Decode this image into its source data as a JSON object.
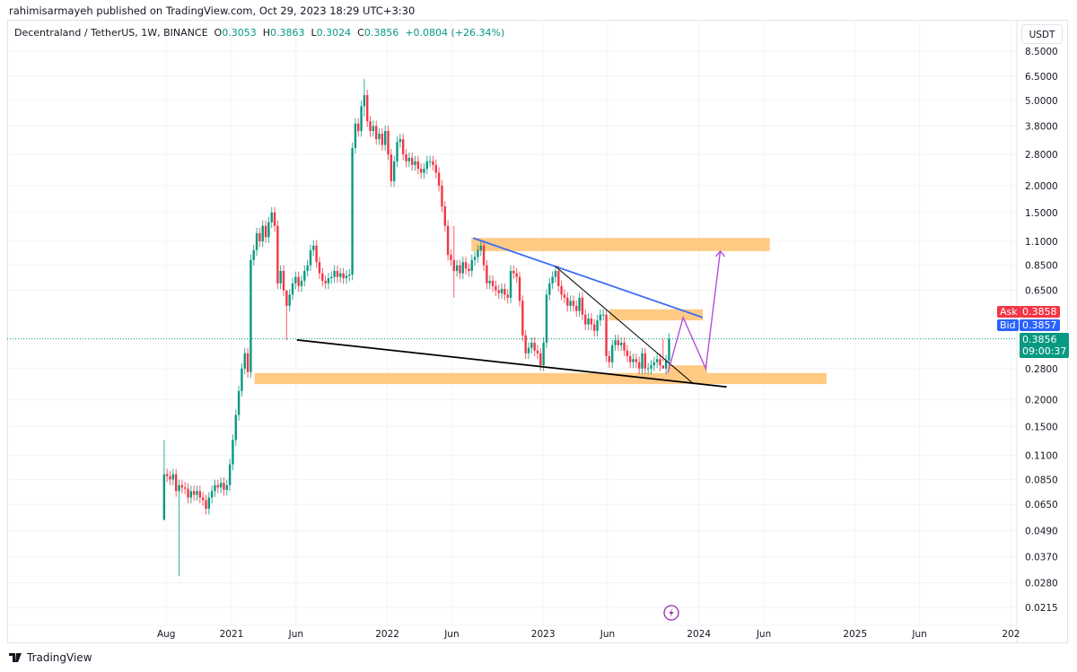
{
  "publisher_line": "rahimisarmayeh published on TradingView.com, Oct 29, 2023 18:29 UTC+3:30",
  "legend": {
    "symbol": "Decentraland / TetherUS, 1W, BINANCE",
    "open_label": "O",
    "open": "0.3053",
    "high_label": "H",
    "high": "0.3863",
    "low_label": "L",
    "low": "0.3024",
    "close_label": "C",
    "close": "0.3856",
    "change": "+0.0804 (+26.34%)"
  },
  "currency_button": "USDT",
  "ask": {
    "label": "Ask",
    "value": "0.3858"
  },
  "bid": {
    "label": "Bid",
    "value": "0.3857"
  },
  "last_price": {
    "value": "0.3856",
    "countdown": "09:00:37"
  },
  "logo_text": "TradingView",
  "colors": {
    "up": "#089981",
    "down": "#f23645",
    "zone": "#ffc16e",
    "support": "#000000",
    "resistance": "#3d6cf5",
    "projection": "#b54ddc",
    "ask": "#f23645",
    "bid": "#2962ff",
    "grid": "#f0f3fa"
  },
  "icons": {
    "event": "lightning-icon",
    "logo": "tradingview-logo-icon"
  },
  "chart_data": {
    "type": "candlestick",
    "title": "Decentraland / TetherUS, 1W, BINANCE",
    "scale": "log",
    "ylim": [
      0.0195,
      9.5
    ],
    "y_ticks": [
      8.5,
      6.5,
      5.0,
      3.8,
      2.8,
      2.0,
      1.5,
      1.1,
      0.85,
      0.65,
      0.28,
      0.2,
      0.15,
      0.11,
      0.085,
      0.065,
      0.049,
      0.037,
      0.028,
      0.0215
    ],
    "y_tick_labels": [
      "8.5000",
      "6.5000",
      "5.0000",
      "3.8000",
      "2.8000",
      "2.0000",
      "1.5000",
      "1.1000",
      "0.8500",
      "0.6500",
      "0.2800",
      "0.2000",
      "0.1500",
      "0.1100",
      "0.0850",
      "0.0650",
      "0.0490",
      "0.0370",
      "0.0280",
      "0.0215"
    ],
    "x_ticks": [
      {
        "label": "Aug",
        "date": "2020-08-01"
      },
      {
        "label": "2021",
        "date": "2021-01-01"
      },
      {
        "label": "Jun",
        "date": "2021-06-01"
      },
      {
        "label": "2022",
        "date": "2022-01-01"
      },
      {
        "label": "Jun",
        "date": "2022-06-01"
      },
      {
        "label": "2023",
        "date": "2023-01-01"
      },
      {
        "label": "Jun",
        "date": "2023-06-01"
      },
      {
        "label": "2024",
        "date": "2024-01-01"
      },
      {
        "label": "Jun",
        "date": "2024-06-01"
      },
      {
        "label": "2025",
        "date": "2025-01-01"
      },
      {
        "label": "Jun",
        "date": "2025-06-01"
      },
      {
        "label": "202",
        "date": "2026-01-01"
      }
    ],
    "interval": "1W",
    "last_candle_date": "2023-10-23",
    "first_open": 0.055,
    "closes": [
      0.09,
      0.088,
      0.085,
      0.09,
      0.075,
      0.08,
      0.078,
      0.077,
      0.07,
      0.075,
      0.072,
      0.075,
      0.07,
      0.068,
      0.062,
      0.07,
      0.075,
      0.08,
      0.078,
      0.082,
      0.076,
      0.08,
      0.1,
      0.13,
      0.17,
      0.22,
      0.28,
      0.33,
      0.27,
      0.9,
      1.0,
      1.2,
      1.1,
      1.3,
      1.15,
      1.35,
      1.5,
      1.3,
      0.7,
      0.8,
      0.65,
      0.55,
      0.62,
      0.7,
      0.75,
      0.68,
      0.72,
      0.8,
      0.85,
      1.0,
      1.05,
      0.88,
      0.78,
      0.72,
      0.7,
      0.74,
      0.75,
      0.8,
      0.75,
      0.78,
      0.74,
      0.76,
      0.77,
      3.0,
      3.9,
      3.6,
      4.7,
      5.3,
      4.0,
      3.6,
      3.8,
      3.3,
      3.5,
      3.1,
      3.6,
      2.8,
      2.1,
      2.6,
      3.2,
      3.3,
      2.8,
      2.6,
      2.7,
      2.5,
      2.6,
      2.4,
      2.3,
      2.4,
      2.6,
      2.6,
      2.5,
      2.3,
      2.0,
      1.6,
      1.3,
      0.95,
      0.9,
      0.8,
      0.85,
      0.78,
      0.88,
      0.82,
      0.8,
      0.9,
      0.93,
      1.0,
      1.05,
      0.85,
      0.7,
      0.72,
      0.68,
      0.65,
      0.63,
      0.66,
      0.62,
      0.6,
      0.8,
      0.78,
      0.75,
      0.58,
      0.4,
      0.33,
      0.35,
      0.37,
      0.34,
      0.33,
      0.29,
      0.37,
      0.62,
      0.7,
      0.75,
      0.8,
      0.68,
      0.62,
      0.6,
      0.55,
      0.58,
      0.55,
      0.52,
      0.6,
      0.5,
      0.45,
      0.48,
      0.45,
      0.42,
      0.47,
      0.5,
      0.5,
      0.32,
      0.3,
      0.36,
      0.38,
      0.36,
      0.37,
      0.34,
      0.32,
      0.3,
      0.31,
      0.3,
      0.28,
      0.33,
      0.28,
      0.28,
      0.29,
      0.3,
      0.31,
      0.29,
      0.28,
      0.3053,
      0.3856
    ],
    "wicks": [
      {
        "i": 0,
        "low": 0.055,
        "high": 0.13
      },
      {
        "i": 5,
        "low": 0.03,
        "high": 0.085
      },
      {
        "i": 41,
        "low": 0.38,
        "high": 0.62
      },
      {
        "i": 67,
        "low": 4.2,
        "high": 6.3
      },
      {
        "i": 97,
        "low": 0.6,
        "high": 1.3
      },
      {
        "i": 167,
        "low": 0.3024,
        "high": 0.3863
      }
    ],
    "current_price": 0.3856,
    "drawings": {
      "zones": [
        {
          "from": "2022-07-17",
          "to": "2024-06-15",
          "top": 1.14,
          "bottom": 0.99
        },
        {
          "from": "2023-06-05",
          "to": "2024-01-10",
          "top": 0.53,
          "bottom": 0.47
        },
        {
          "from": "2023-10-20",
          "to": "2024-01-20",
          "top": 0.29,
          "bottom": 0.266
        },
        {
          "from": "2021-02-24",
          "to": "2024-10-26",
          "top": 0.267,
          "bottom": 0.237
        }
      ],
      "lines": [
        {
          "kind": "support",
          "points": [
            [
              "2021-06-03",
              0.381
            ],
            [
              "2024-03-06",
              0.23
            ]
          ]
        },
        {
          "kind": "resistance",
          "points": [
            [
              "2022-07-21",
              1.14
            ],
            [
              "2024-01-10",
              0.485
            ]
          ]
        },
        {
          "kind": "trendline",
          "points": [
            [
              "2023-01-30",
              0.84
            ],
            [
              "2023-12-20",
              0.237
            ]
          ]
        }
      ],
      "projection": [
        [
          "2023-10-20",
          0.267
        ],
        [
          "2023-11-25",
          0.485
        ],
        [
          "2024-01-17",
          0.28
        ],
        [
          "2024-02-20",
          0.99
        ]
      ]
    }
  }
}
